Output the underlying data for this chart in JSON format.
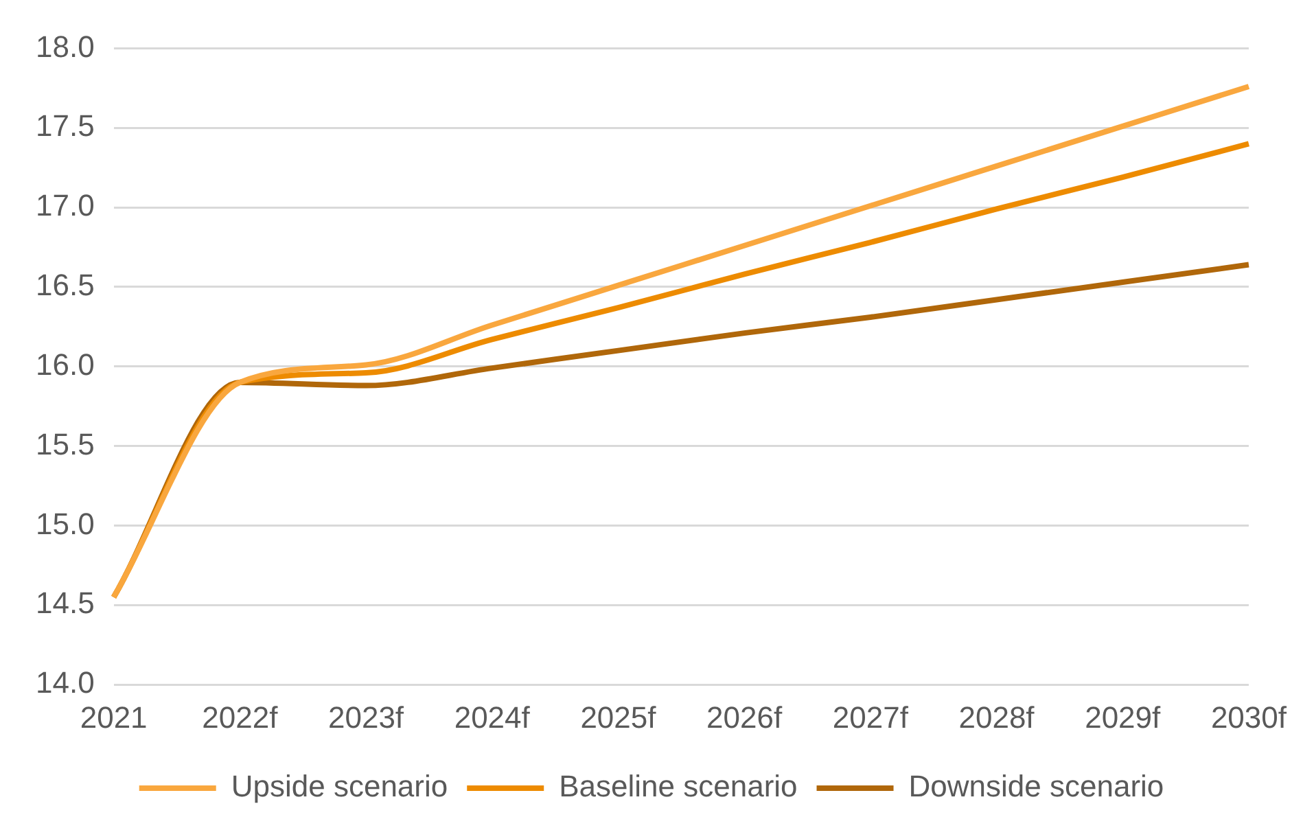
{
  "chart_data": {
    "type": "line",
    "categories": [
      "2021",
      "2022f",
      "2023f",
      "2024f",
      "2025f",
      "2026f",
      "2027f",
      "2028f",
      "2029f",
      "2030f"
    ],
    "series": [
      {
        "name": "Upside scenario",
        "color": "#f9a73e",
        "values": [
          14.55,
          15.9,
          16.01,
          16.26,
          16.51,
          16.76,
          17.01,
          17.26,
          17.51,
          17.76
        ]
      },
      {
        "name": "Baseline scenario",
        "color": "#ed8b00",
        "values": [
          14.55,
          15.9,
          15.96,
          16.17,
          16.37,
          16.58,
          16.78,
          16.99,
          17.19,
          17.4
        ]
      },
      {
        "name": "Downside scenario",
        "color": "#b0670a",
        "values": [
          14.55,
          15.9,
          15.88,
          15.99,
          16.1,
          16.21,
          16.31,
          16.42,
          16.53,
          16.64
        ]
      }
    ],
    "ylim": [
      14,
      18
    ],
    "yticks": [
      {
        "value": 14,
        "label": "14.0"
      },
      14.5,
      {
        "value": 15,
        "label": "15.0"
      },
      15.5,
      {
        "value": 16,
        "label": "16.0"
      },
      16.5,
      {
        "value": 17,
        "label": "17.0"
      },
      17.5,
      {
        "value": 18,
        "label": "18.0"
      }
    ],
    "grid": "y",
    "legend": "bottom",
    "marker": "none",
    "line_style": "solid"
  }
}
